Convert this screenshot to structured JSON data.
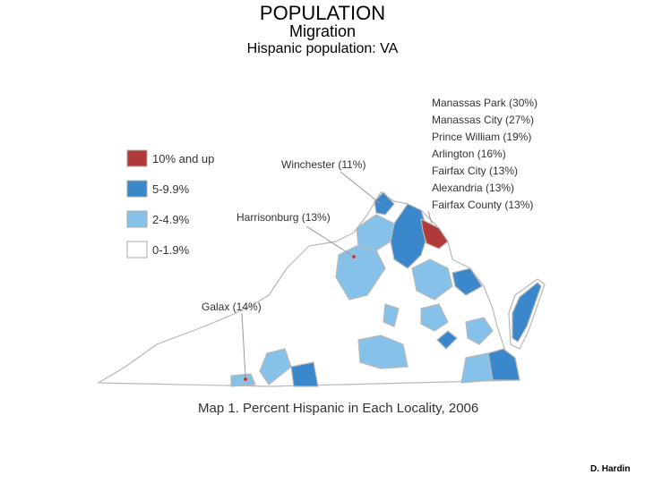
{
  "header": {
    "title": "POPULATION",
    "subtitle": "Migration",
    "heading": "Hispanic population: VA"
  },
  "legend": [
    {
      "label": "10% and up",
      "color": "#b03a3a"
    },
    {
      "label": "5-9.9%",
      "color": "#3a87cc"
    },
    {
      "label": "2-4.9%",
      "color": "#86c1ea"
    },
    {
      "label": "0-1.9%",
      "color": "#ffffff"
    }
  ],
  "annotations": {
    "northern_list": [
      "Manassas Park (30%)",
      "Manassas City (27%)",
      "Prince William (19%)",
      "Arlington (16%)",
      "Fairfax City (13%)",
      "Alexandria (13%)",
      "Fairfax County (13%)"
    ],
    "winchester": "Winchester (11%)",
    "harrisonburg": "Harrisonburg (13%)",
    "galax": "Galax (14%)"
  },
  "caption": "Map 1. Percent Hispanic in Each Locality, 2006",
  "author": "D. Hardin"
}
